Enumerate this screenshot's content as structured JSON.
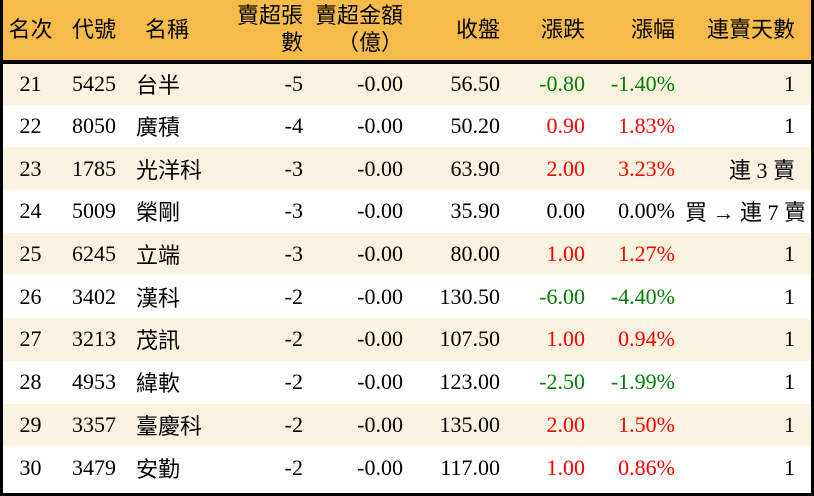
{
  "chart_data": {
    "type": "table",
    "title": "",
    "columns": [
      "名次",
      "代號",
      "名稱",
      "賣超張數",
      "賣超金額\n（億）",
      "收盤",
      "漲跌",
      "漲幅",
      "連賣天數"
    ],
    "rows": [
      [
        "21",
        "5425",
        "台半",
        "-5",
        "-0.00",
        "56.50",
        "-0.80",
        "-1.40%",
        "1"
      ],
      [
        "22",
        "8050",
        "廣積",
        "-4",
        "-0.00",
        "50.20",
        "0.90",
        "1.83%",
        "1"
      ],
      [
        "23",
        "1785",
        "光洋科",
        "-3",
        "-0.00",
        "63.90",
        "2.00",
        "3.23%",
        "連 3 賣"
      ],
      [
        "24",
        "5009",
        "榮剛",
        "-3",
        "-0.00",
        "35.90",
        "0.00",
        "0.00%",
        "買 → 連 7 賣"
      ],
      [
        "25",
        "6245",
        "立端",
        "-3",
        "-0.00",
        "80.00",
        "1.00",
        "1.27%",
        "1"
      ],
      [
        "26",
        "3402",
        "漢科",
        "-2",
        "-0.00",
        "130.50",
        "-6.00",
        "-4.40%",
        "1"
      ],
      [
        "27",
        "3213",
        "茂訊",
        "-2",
        "-0.00",
        "107.50",
        "1.00",
        "0.94%",
        "1"
      ],
      [
        "28",
        "4953",
        "緯軟",
        "-2",
        "-0.00",
        "123.00",
        "-2.50",
        "-1.99%",
        "1"
      ],
      [
        "29",
        "3357",
        "臺慶科",
        "-2",
        "-0.00",
        "135.00",
        "2.00",
        "1.50%",
        "1"
      ],
      [
        "30",
        "3479",
        "安勤",
        "-2",
        "-0.00",
        "117.00",
        "1.00",
        "0.86%",
        "1"
      ]
    ]
  },
  "colors": {
    "header_bg": "#F5BC4B",
    "row_alt_bg": "#FAF3DF",
    "row_bg": "#FFFFFF",
    "up": "#FF0000",
    "down": "#008000",
    "text": "#000000",
    "border": "#000000"
  }
}
